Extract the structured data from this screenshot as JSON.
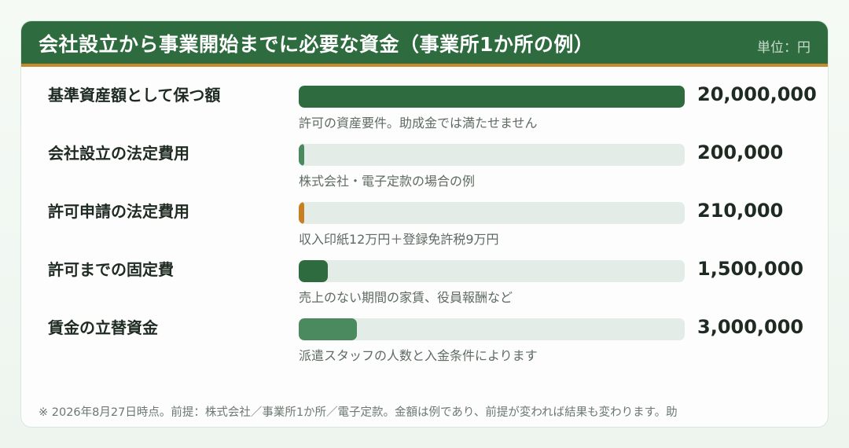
{
  "header": {
    "title": "会社設立から事業開始までに必要な資金（事業所1か所の例）",
    "unit": "単位：円"
  },
  "colors": {
    "header_bg": "#2e6b3f",
    "header_accent": "#c9882a",
    "bar_dark": "#2e6b3f",
    "bar_mid": "#4a8a5e",
    "bar_orange": "#c77f22",
    "track": "#e3ece6"
  },
  "chart_data": {
    "type": "bar",
    "orientation": "horizontal",
    "title": "会社設立から事業開始までに必要な資金（事業所1か所の例）",
    "unit": "単位：円",
    "xlim": [
      0,
      20000000
    ],
    "categories": [
      "基準資産額として保つ額",
      "会社設立の法定費用",
      "許可申請の法定費用",
      "許可までの固定費",
      "賃金の立替資金"
    ],
    "values": [
      20000000,
      200000,
      210000,
      1500000,
      3000000
    ],
    "value_labels": [
      "20,000,000",
      "200,000",
      "210,000",
      "1,500,000",
      "3,000,000"
    ],
    "notes": [
      "許可の資産要件。助成金では満たせません",
      "株式会社・電子定款の場合の例",
      "収入印紙12万円＋登録免許税9万円",
      "売上のない期間の家賃、役員報酬など",
      "派遣スタッフの人数と入金条件によります"
    ],
    "bar_colors": [
      "#2e6b3f",
      "#4a8a5e",
      "#c77f22",
      "#2e6b3f",
      "#4a8a5e"
    ]
  },
  "footer": {
    "text": "※ 2026年8月27日時点。前提：株式会社／事業所1か所／電子定款。金額は例であり、前提が変われば結果も変わります。助"
  }
}
